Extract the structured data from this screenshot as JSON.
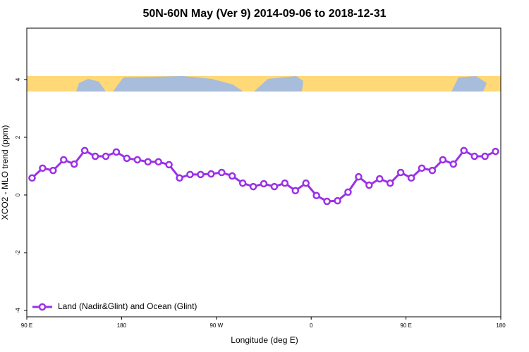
{
  "chart_data": {
    "type": "line",
    "title": "50N-60N May (Ver 9)   2014-09-06 to 2018-12-31",
    "x_label": "Longitude (deg E)",
    "y_label": "XCO2 - MLO trend (ppm)",
    "x": [
      95,
      105,
      115,
      125,
      135,
      145,
      155,
      165,
      175,
      185,
      195,
      205,
      215,
      225,
      235,
      245,
      255,
      265,
      275,
      285,
      295,
      305,
      315,
      325,
      335,
      345,
      355,
      365,
      375,
      385,
      395,
      405,
      415,
      425,
      435,
      445,
      455,
      465,
      475,
      485,
      495,
      505,
      515,
      525,
      535
    ],
    "series": [
      {
        "name": "Land (Nadir&Glint) and Ocean (Glint)",
        "color": "#9b30e6",
        "values": [
          0.59,
          0.93,
          0.85,
          1.22,
          1.07,
          1.54,
          1.34,
          1.34,
          1.49,
          1.27,
          1.22,
          1.15,
          1.15,
          1.05,
          0.59,
          0.71,
          0.71,
          0.73,
          0.78,
          0.66,
          0.41,
          0.29,
          0.39,
          0.29,
          0.41,
          0.15,
          0.41,
          -0.02,
          -0.22,
          -0.2,
          0.1,
          0.63,
          0.34,
          0.56,
          0.41,
          0.78,
          0.59,
          0.93,
          0.85,
          1.22,
          1.07,
          1.54,
          1.34,
          1.34,
          1.51
        ]
      }
    ],
    "xlim": [
      90,
      540
    ],
    "xticks": [
      {
        "value": 90,
        "label": "90 E"
      },
      180,
      {
        "value": 270,
        "label": "90 W"
      },
      {
        "value": 360,
        "label": "0"
      },
      {
        "value": 450,
        "label": "90 E"
      },
      {
        "value": 540,
        "label": "180"
      }
    ],
    "ylim": [
      -4.22,
      5.78
    ],
    "yticks": [
      -4,
      -2,
      0,
      2,
      4
    ],
    "legend": "bottom-left"
  }
}
